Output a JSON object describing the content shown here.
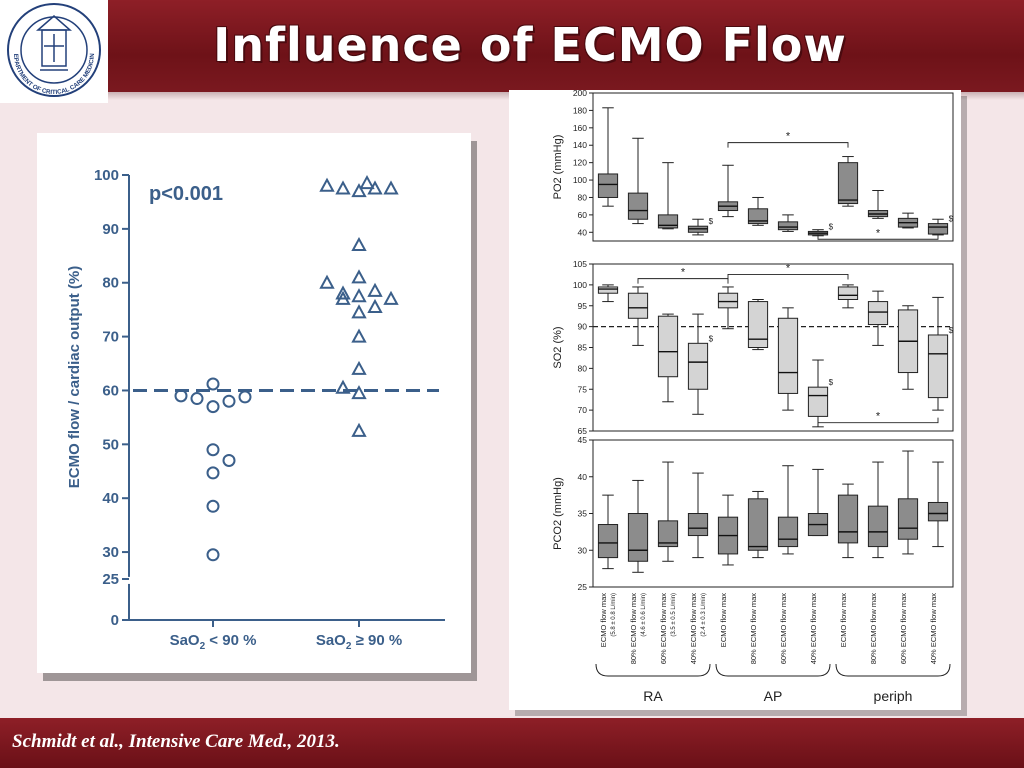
{
  "slide": {
    "title": "Influence of ECMO Flow",
    "citation": "Schmidt et al., Intensive Care Med., 2013.",
    "colors": {
      "header_band": "#7d1a21",
      "background": "#f4e6e8",
      "marker_blue": "#3b5f8a",
      "box_dark": "#8c8c8c",
      "box_light": "#d4d4d4"
    },
    "logo_icon": "department-seal-icon",
    "logo_text": "DEPARTMENT OF CRITICAL CARE MEDICINE"
  },
  "chart_data": [
    {
      "type": "scatter",
      "ylabel": "ECMO flow / cardiac output (%)",
      "annotation": "p<0.001",
      "yticks": [
        0,
        25,
        30,
        40,
        50,
        60,
        70,
        80,
        90,
        100
      ],
      "ylim": [
        0,
        100
      ],
      "axis_break": [
        0,
        25
      ],
      "reference_line": 60,
      "groups": [
        {
          "label_main": "SaO",
          "label_sub": "2",
          "label_rest": " < 90 %",
          "marker": "circle",
          "points": [
            {
              "x": -2,
              "y": 59
            },
            {
              "x": -1,
              "y": 58.5
            },
            {
              "x": 0,
              "y": 61.2
            },
            {
              "x": 0,
              "y": 57
            },
            {
              "x": 1,
              "y": 58
            },
            {
              "x": 2,
              "y": 58.8
            },
            {
              "x": 0,
              "y": 49
            },
            {
              "x": 1,
              "y": 47
            },
            {
              "x": 0,
              "y": 44.7
            },
            {
              "x": 0,
              "y": 38.5
            },
            {
              "x": 0,
              "y": 29.5
            }
          ]
        },
        {
          "label_main": "SaO",
          "label_sub": "2",
          "label_rest": " ≥ 90 %",
          "marker": "triangle",
          "points": [
            {
              "x": -2,
              "y": 98
            },
            {
              "x": -1,
              "y": 97.5
            },
            {
              "x": 0,
              "y": 97
            },
            {
              "x": 0.5,
              "y": 98.5
            },
            {
              "x": 1,
              "y": 97.5
            },
            {
              "x": 2,
              "y": 97.5
            },
            {
              "x": 0,
              "y": 87
            },
            {
              "x": -2,
              "y": 80
            },
            {
              "x": 0,
              "y": 81
            },
            {
              "x": -1,
              "y": 78
            },
            {
              "x": 1,
              "y": 78.5
            },
            {
              "x": -1,
              "y": 77
            },
            {
              "x": 0,
              "y": 77.5
            },
            {
              "x": 2,
              "y": 77
            },
            {
              "x": 1,
              "y": 75.5
            },
            {
              "x": 0,
              "y": 74.5
            },
            {
              "x": 0,
              "y": 70
            },
            {
              "x": 0,
              "y": 64
            },
            {
              "x": -1,
              "y": 60.5
            },
            {
              "x": 0,
              "y": 59.5
            },
            {
              "x": 0,
              "y": 52.5
            }
          ]
        }
      ]
    },
    {
      "type": "box",
      "ylabel": "PO2 (mmHg)",
      "ylim": [
        30,
        200
      ],
      "yticks": [
        40,
        60,
        80,
        100,
        120,
        140,
        160,
        180,
        200
      ],
      "boxes": [
        {
          "min": 70,
          "q1": 80,
          "median": 95,
          "q3": 107,
          "max": 183,
          "fill": "dark"
        },
        {
          "min": 50,
          "q1": 55,
          "median": 65,
          "q3": 85,
          "max": 148,
          "fill": "dark"
        },
        {
          "min": 44,
          "q1": 45,
          "median": 48,
          "q3": 60,
          "max": 120,
          "fill": "dark"
        },
        {
          "min": 37,
          "q1": 40,
          "median": 44,
          "q3": 47,
          "max": 55,
          "fill": "dark",
          "mark": "$"
        },
        {
          "min": 58,
          "q1": 65,
          "median": 70,
          "q3": 75,
          "max": 117,
          "fill": "dark"
        },
        {
          "min": 48,
          "q1": 50,
          "median": 53,
          "q3": 67,
          "max": 80,
          "fill": "dark"
        },
        {
          "min": 41,
          "q1": 43,
          "median": 46,
          "q3": 52,
          "max": 60,
          "fill": "dark"
        },
        {
          "min": 36,
          "q1": 37,
          "median": 39,
          "q3": 41,
          "max": 43,
          "fill": "dark",
          "mark": "$"
        },
        {
          "min": 70,
          "q1": 73,
          "median": 77,
          "q3": 120,
          "max": 127,
          "fill": "dark"
        },
        {
          "min": 56,
          "q1": 58,
          "median": 61,
          "q3": 65,
          "max": 88,
          "fill": "dark"
        },
        {
          "min": 45,
          "q1": 46,
          "median": 51,
          "q3": 56,
          "max": 62,
          "fill": "dark"
        },
        {
          "min": 37,
          "q1": 38,
          "median": 46,
          "q3": 50,
          "max": 55,
          "fill": "dark",
          "mark": "$"
        }
      ],
      "brackets": [
        {
          "from": 4,
          "to": 8,
          "label": "*",
          "side": "top",
          "value": 143
        },
        {
          "from": 7,
          "to": 11,
          "label": "*",
          "side": "bottom",
          "value": 32
        }
      ]
    },
    {
      "type": "box",
      "ylabel": "SO2 (%)",
      "ylim": [
        65,
        105
      ],
      "yticks": [
        65,
        70,
        75,
        80,
        85,
        90,
        95,
        100,
        105
      ],
      "reference_line": 90,
      "boxes": [
        {
          "min": 96,
          "q1": 98,
          "median": 99,
          "q3": 99.5,
          "max": 100,
          "fill": "light"
        },
        {
          "min": 85.5,
          "q1": 92,
          "median": 94.5,
          "q3": 98,
          "max": 99.5,
          "fill": "light"
        },
        {
          "min": 72,
          "q1": 78,
          "median": 84,
          "q3": 92.5,
          "max": 93,
          "fill": "light"
        },
        {
          "min": 69,
          "q1": 75,
          "median": 81.5,
          "q3": 86,
          "max": 93,
          "fill": "light",
          "mark": "$"
        },
        {
          "min": 89.5,
          "q1": 94.5,
          "median": 96,
          "q3": 98,
          "max": 99.5,
          "fill": "light"
        },
        {
          "min": 84.5,
          "q1": 85,
          "median": 87,
          "q3": 96,
          "max": 96.5,
          "fill": "light"
        },
        {
          "min": 70,
          "q1": 74,
          "median": 79,
          "q3": 92,
          "max": 94.5,
          "fill": "light"
        },
        {
          "min": 66,
          "q1": 68.5,
          "median": 73.5,
          "q3": 75.5,
          "max": 82,
          "fill": "light",
          "mark": "$"
        },
        {
          "min": 94.5,
          "q1": 96.5,
          "median": 97.5,
          "q3": 99.5,
          "max": 100,
          "fill": "light"
        },
        {
          "min": 85.5,
          "q1": 90.5,
          "median": 93.5,
          "q3": 96,
          "max": 98.5,
          "fill": "light"
        },
        {
          "min": 75,
          "q1": 79,
          "median": 86.5,
          "q3": 94,
          "max": 95,
          "fill": "light"
        },
        {
          "min": 70,
          "q1": 73,
          "median": 83.5,
          "q3": 88,
          "max": 97,
          "fill": "light",
          "mark": "$"
        }
      ],
      "brackets": [
        {
          "from": 1,
          "to": 4,
          "label": "*",
          "side": "top",
          "value": 101.5
        },
        {
          "from": 4,
          "to": 8,
          "label": "*",
          "side": "top",
          "value": 102.5
        },
        {
          "from": 7,
          "to": 11,
          "label": "*",
          "side": "bottom",
          "value": 67
        }
      ]
    },
    {
      "type": "box",
      "ylabel": "PCO2 (mmHg)",
      "ylim": [
        25,
        45
      ],
      "yticks": [
        25,
        30,
        35,
        40,
        45
      ],
      "boxes": [
        {
          "min": 27.5,
          "q1": 29,
          "median": 31,
          "q3": 33.5,
          "max": 37.5,
          "fill": "dark"
        },
        {
          "min": 27,
          "q1": 28.5,
          "median": 30,
          "q3": 35,
          "max": 39.5,
          "fill": "dark"
        },
        {
          "min": 28.5,
          "q1": 30.5,
          "median": 31,
          "q3": 34,
          "max": 42,
          "fill": "dark"
        },
        {
          "min": 29,
          "q1": 32,
          "median": 33,
          "q3": 35,
          "max": 40.5,
          "fill": "dark"
        },
        {
          "min": 28,
          "q1": 29.5,
          "median": 32,
          "q3": 34.5,
          "max": 37.5,
          "fill": "dark"
        },
        {
          "min": 29,
          "q1": 30,
          "median": 30.5,
          "q3": 37,
          "max": 38,
          "fill": "dark"
        },
        {
          "min": 29.5,
          "q1": 30.5,
          "median": 31.5,
          "q3": 34.5,
          "max": 41.5,
          "fill": "dark"
        },
        {
          "min": 32,
          "q1": 32,
          "median": 33.5,
          "q3": 35,
          "max": 41,
          "fill": "dark"
        },
        {
          "min": 29,
          "q1": 31,
          "median": 32.5,
          "q3": 37.5,
          "max": 39,
          "fill": "dark"
        },
        {
          "min": 29,
          "q1": 30.5,
          "median": 32.5,
          "q3": 36,
          "max": 42,
          "fill": "dark"
        },
        {
          "min": 29.5,
          "q1": 31.5,
          "median": 33,
          "q3": 37,
          "max": 43.5,
          "fill": "dark"
        },
        {
          "min": 30.5,
          "q1": 34,
          "median": 35,
          "q3": 36.5,
          "max": 42,
          "fill": "dark"
        }
      ]
    }
  ],
  "boxplot_categories": {
    "labels": [
      "ECMO flow max",
      "80% ECMO flow max",
      "60% ECMO flow max",
      "40% ECMO flow max",
      "ECMO flow max",
      "80% ECMO flow max",
      "60% ECMO flow max",
      "40% ECMO flow max",
      "ECMO flow max",
      "80% ECMO flow max",
      "60% ECMO flow max",
      "40% ECMO flow max"
    ],
    "sublabels": [
      "(5.8 ± 0.8 L/min)",
      "(4.6 ± 0.6 L/min)",
      "(3.5 ± 0.5 L/min)",
      "(2.4 ± 0.3 L/min)"
    ],
    "groups": [
      {
        "name": "RA",
        "from": 0,
        "to": 3
      },
      {
        "name": "AP",
        "from": 4,
        "to": 7
      },
      {
        "name": "periph",
        "from": 8,
        "to": 11
      }
    ]
  }
}
